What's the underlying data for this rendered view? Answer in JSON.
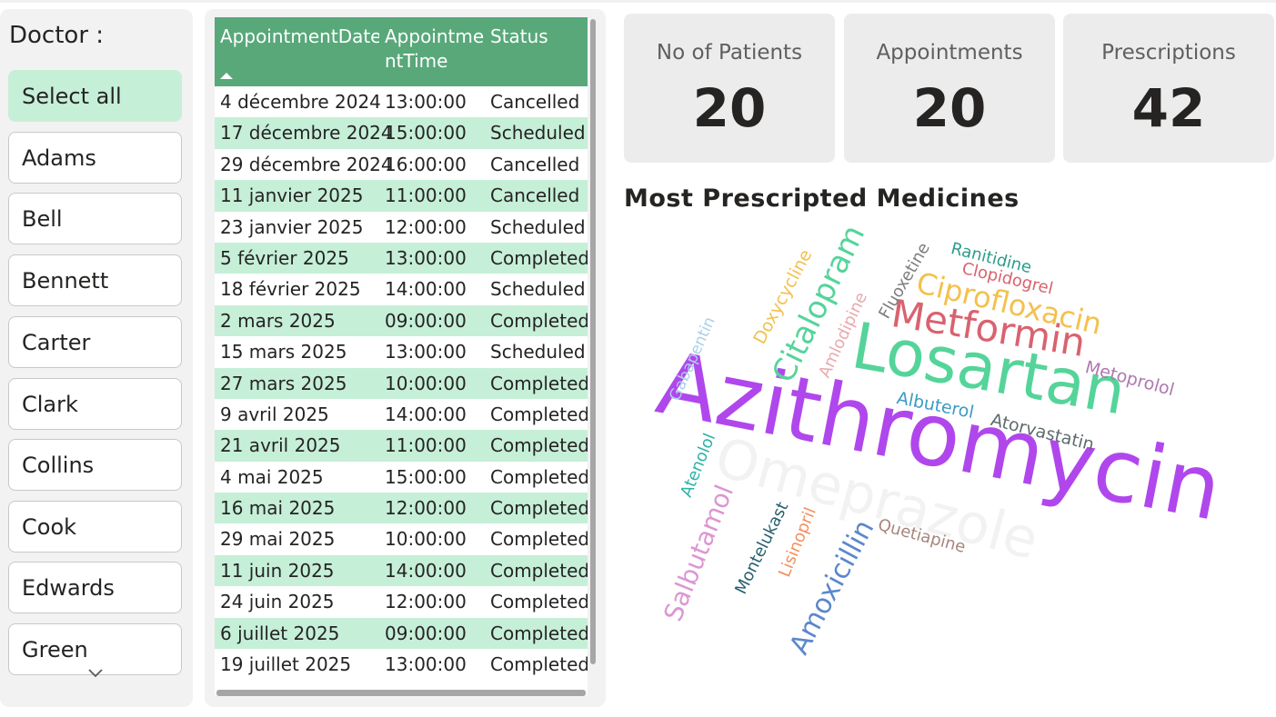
{
  "slicer": {
    "title": "Doctor :",
    "items": [
      {
        "label": "Select all",
        "selected": true
      },
      {
        "label": "Adams"
      },
      {
        "label": "Bell"
      },
      {
        "label": "Bennett"
      },
      {
        "label": "Carter"
      },
      {
        "label": "Clark"
      },
      {
        "label": "Collins"
      },
      {
        "label": "Cook"
      },
      {
        "label": "Edwards"
      },
      {
        "label": "Green"
      }
    ],
    "more_icon": "chevron-down-icon"
  },
  "table": {
    "headers": [
      "AppointmentDate",
      "AppointmentTime",
      "Status"
    ],
    "sort_icon": "sort-ascending-icon",
    "rows": [
      [
        "4 décembre 2024",
        "13:00:00",
        "Cancelled"
      ],
      [
        "17 décembre 2024",
        "15:00:00",
        "Scheduled"
      ],
      [
        "29 décembre 2024",
        "16:00:00",
        "Cancelled"
      ],
      [
        "11 janvier 2025",
        "11:00:00",
        "Cancelled"
      ],
      [
        "23 janvier 2025",
        "12:00:00",
        "Scheduled"
      ],
      [
        "5 février 2025",
        "13:00:00",
        "Completed"
      ],
      [
        "18 février 2025",
        "14:00:00",
        "Scheduled"
      ],
      [
        "2 mars 2025",
        "09:00:00",
        "Completed"
      ],
      [
        "15 mars 2025",
        "13:00:00",
        "Scheduled"
      ],
      [
        "27 mars 2025",
        "10:00:00",
        "Completed"
      ],
      [
        "9 avril 2025",
        "14:00:00",
        "Completed"
      ],
      [
        "21 avril 2025",
        "11:00:00",
        "Completed"
      ],
      [
        "4 mai 2025",
        "15:00:00",
        "Completed"
      ],
      [
        "16 mai 2025",
        "12:00:00",
        "Completed"
      ],
      [
        "29 mai 2025",
        "10:00:00",
        "Completed"
      ],
      [
        "11 juin 2025",
        "14:00:00",
        "Completed"
      ],
      [
        "24 juin 2025",
        "12:00:00",
        "Completed"
      ],
      [
        "6 juillet 2025",
        "09:00:00",
        "Completed"
      ],
      [
        "19 juillet 2025",
        "13:00:00",
        "Completed"
      ]
    ]
  },
  "kpis": [
    {
      "label": "No of Patients",
      "value": "20"
    },
    {
      "label": "Appointments",
      "value": "20"
    },
    {
      "label": "Prescriptions",
      "value": "42"
    }
  ],
  "wordcloud": {
    "title": "Most Prescripted Medicines",
    "words": [
      {
        "text": "Azithromycin",
        "color": "#b047ec"
      },
      {
        "text": "Losartan",
        "color": "#55d49a"
      },
      {
        "text": "Omeprazole",
        "color": "#f2f2f2"
      },
      {
        "text": "Metformin",
        "color": "#d9626f"
      },
      {
        "text": "Ciprofloxacin",
        "color": "#f3c14e"
      },
      {
        "text": "Citalopram",
        "color": "#55d49a"
      },
      {
        "text": "Amoxicillin",
        "color": "#5a87cc"
      },
      {
        "text": "Salbutamol",
        "color": "#dc96d2"
      },
      {
        "text": "Doxycycline",
        "color": "#f3c14e"
      },
      {
        "text": "Metoprolol",
        "color": "#b079b0"
      },
      {
        "text": "Amlodipine",
        "color": "#e9aaae"
      },
      {
        "text": "Ranitidine",
        "color": "#2e9c8c"
      },
      {
        "text": "Clopidogrel",
        "color": "#d9626f"
      },
      {
        "text": "Fluoxetine",
        "color": "#7d7d7d"
      },
      {
        "text": "Gabapentin",
        "color": "#a9d0ea"
      },
      {
        "text": "Albuterol",
        "color": "#3b9bc4"
      },
      {
        "text": "Atorvastatin",
        "color": "#5f6b6d"
      },
      {
        "text": "Atenolol",
        "color": "#2fb3a8"
      },
      {
        "text": "Montelukast",
        "color": "#27606e"
      },
      {
        "text": "Lisinopril",
        "color": "#f29060"
      },
      {
        "text": "Quetiapine",
        "color": "#a8857e"
      }
    ]
  }
}
